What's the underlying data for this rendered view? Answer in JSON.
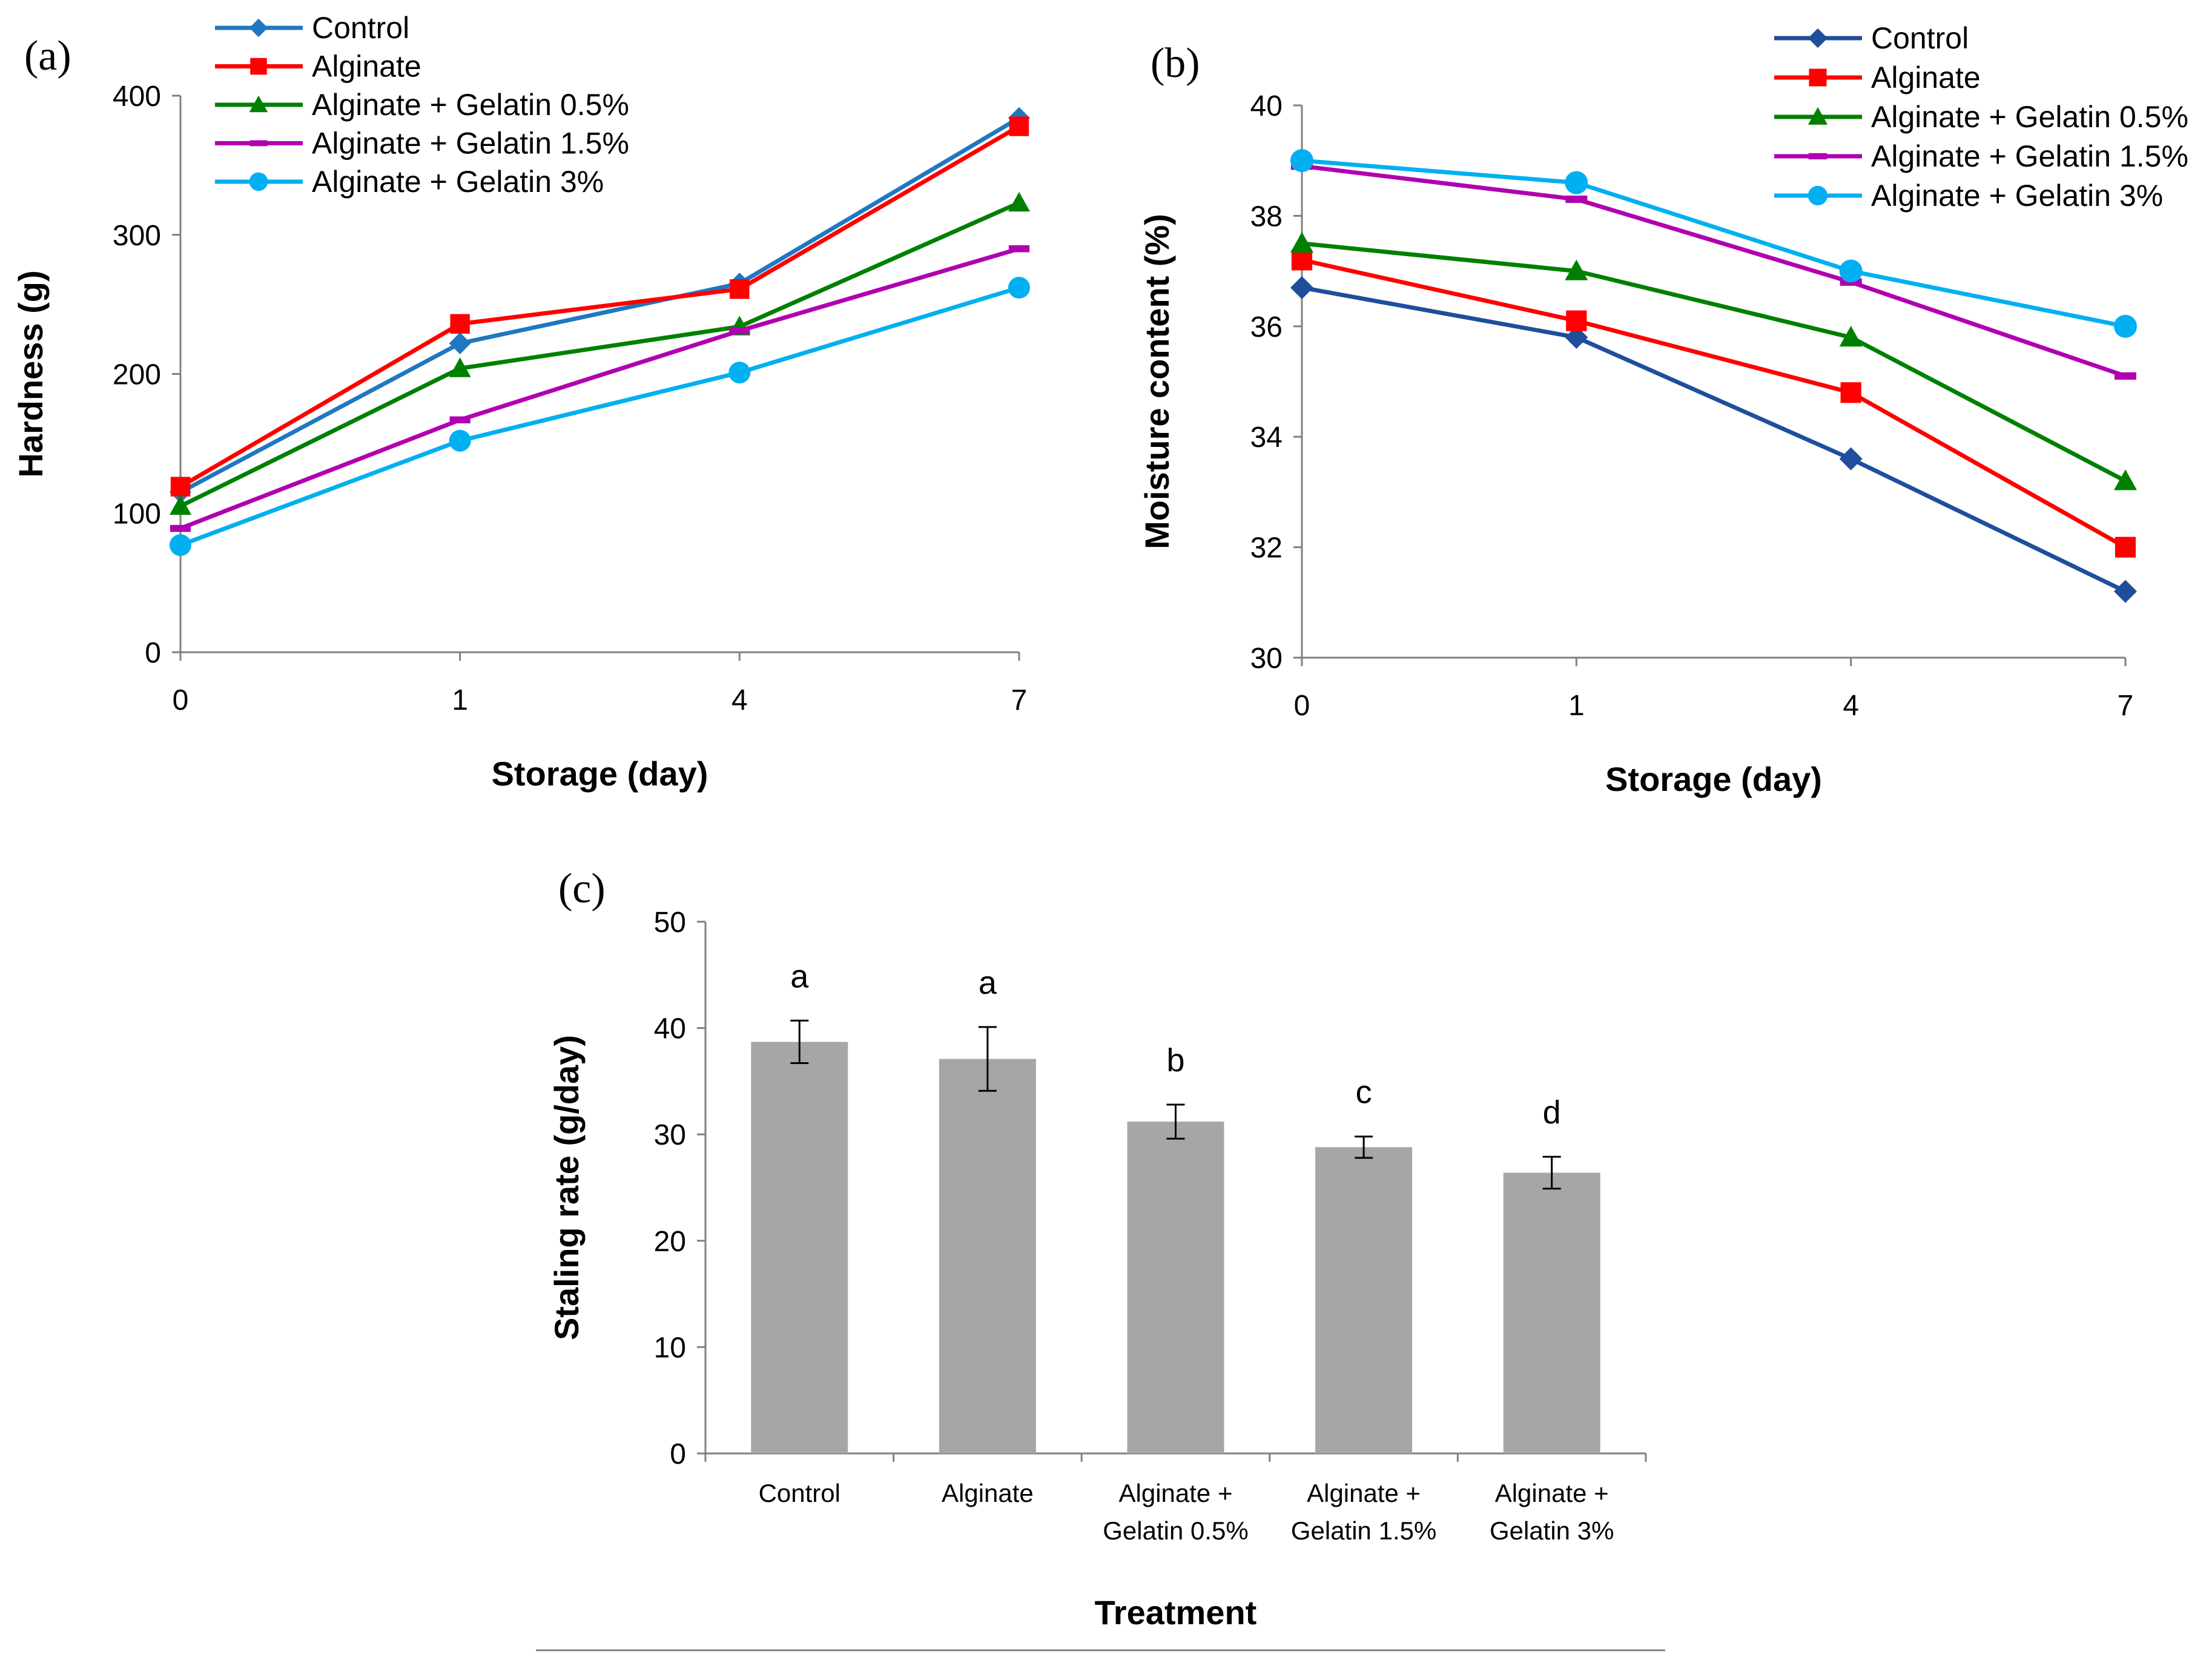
{
  "chart_data": [
    {
      "panel": "(a)",
      "type": "line",
      "x": [
        "0",
        "1",
        "4",
        "7"
      ],
      "xlabel": "Storage (day)",
      "ylabel": "Hardness  (g)",
      "ylim": [
        0,
        400
      ],
      "yticks": [
        "0",
        "100",
        "200",
        "300",
        "400"
      ],
      "legend_position": "top-left",
      "series": [
        {
          "name": "Control",
          "color": "#1f78c1",
          "marker": "diamond",
          "values": [
            115,
            222,
            265,
            384
          ]
        },
        {
          "name": "Alginate",
          "color": "#ff0000",
          "marker": "square",
          "values": [
            119,
            236,
            261,
            378
          ]
        },
        {
          "name": "Alginate + Gelatin 0.5%",
          "color": "#008000",
          "marker": "triangle",
          "values": [
            105,
            204,
            234,
            323
          ]
        },
        {
          "name": "Alginate + Gelatin 1.5%",
          "color": "#b000b0",
          "marker": "dash",
          "values": [
            89,
            167,
            231,
            290
          ]
        },
        {
          "name": "Alginate + Gelatin 3%",
          "color": "#00b0f0",
          "marker": "circle",
          "values": [
            77,
            152,
            201,
            262
          ]
        }
      ]
    },
    {
      "panel": "(b)",
      "type": "line",
      "x": [
        "0",
        "1",
        "4",
        "7"
      ],
      "xlabel": "Storage (day)",
      "ylabel": "Moisture content  (%)",
      "ylim": [
        30,
        40
      ],
      "yticks": [
        "30",
        "32",
        "34",
        "36",
        "38",
        "40"
      ],
      "legend_position": "top-right",
      "series": [
        {
          "name": "Control",
          "color": "#1f4e9c",
          "marker": "diamond",
          "values": [
            36.7,
            35.8,
            33.6,
            31.2
          ]
        },
        {
          "name": "Alginate",
          "color": "#ff0000",
          "marker": "square",
          "values": [
            37.2,
            36.1,
            34.8,
            32.0
          ]
        },
        {
          "name": "Alginate + Gelatin 0.5%",
          "color": "#008000",
          "marker": "triangle",
          "values": [
            37.5,
            37.0,
            35.8,
            33.2
          ]
        },
        {
          "name": "Alginate + Gelatin 1.5%",
          "color": "#b000b0",
          "marker": "dash",
          "values": [
            38.9,
            38.3,
            36.8,
            35.1
          ]
        },
        {
          "name": "Alginate + Gelatin 3%",
          "color": "#00b0f0",
          "marker": "circle",
          "values": [
            39.0,
            38.6,
            37.0,
            36.0
          ]
        }
      ]
    },
    {
      "panel": "(c)",
      "type": "bar",
      "categories": [
        [
          "Control"
        ],
        [
          "Alginate"
        ],
        [
          "Alginate +",
          "Gelatin 0.5%"
        ],
        [
          "Alginate +",
          "Gelatin 1.5%"
        ],
        [
          "Alginate +",
          "Gelatin 3%"
        ]
      ],
      "values": [
        38.7,
        37.1,
        31.2,
        28.8,
        26.4
      ],
      "errors": [
        2.0,
        3.0,
        1.6,
        1.0,
        1.5
      ],
      "significance": [
        "a",
        "a",
        "b",
        "c",
        "d"
      ],
      "bar_color": "#a6a6a6",
      "xlabel": "Treatment",
      "ylabel": "Staling rate (g/day)",
      "ylim": [
        0,
        50
      ],
      "yticks": [
        "0",
        "10",
        "20",
        "30",
        "40",
        "50"
      ]
    }
  ]
}
